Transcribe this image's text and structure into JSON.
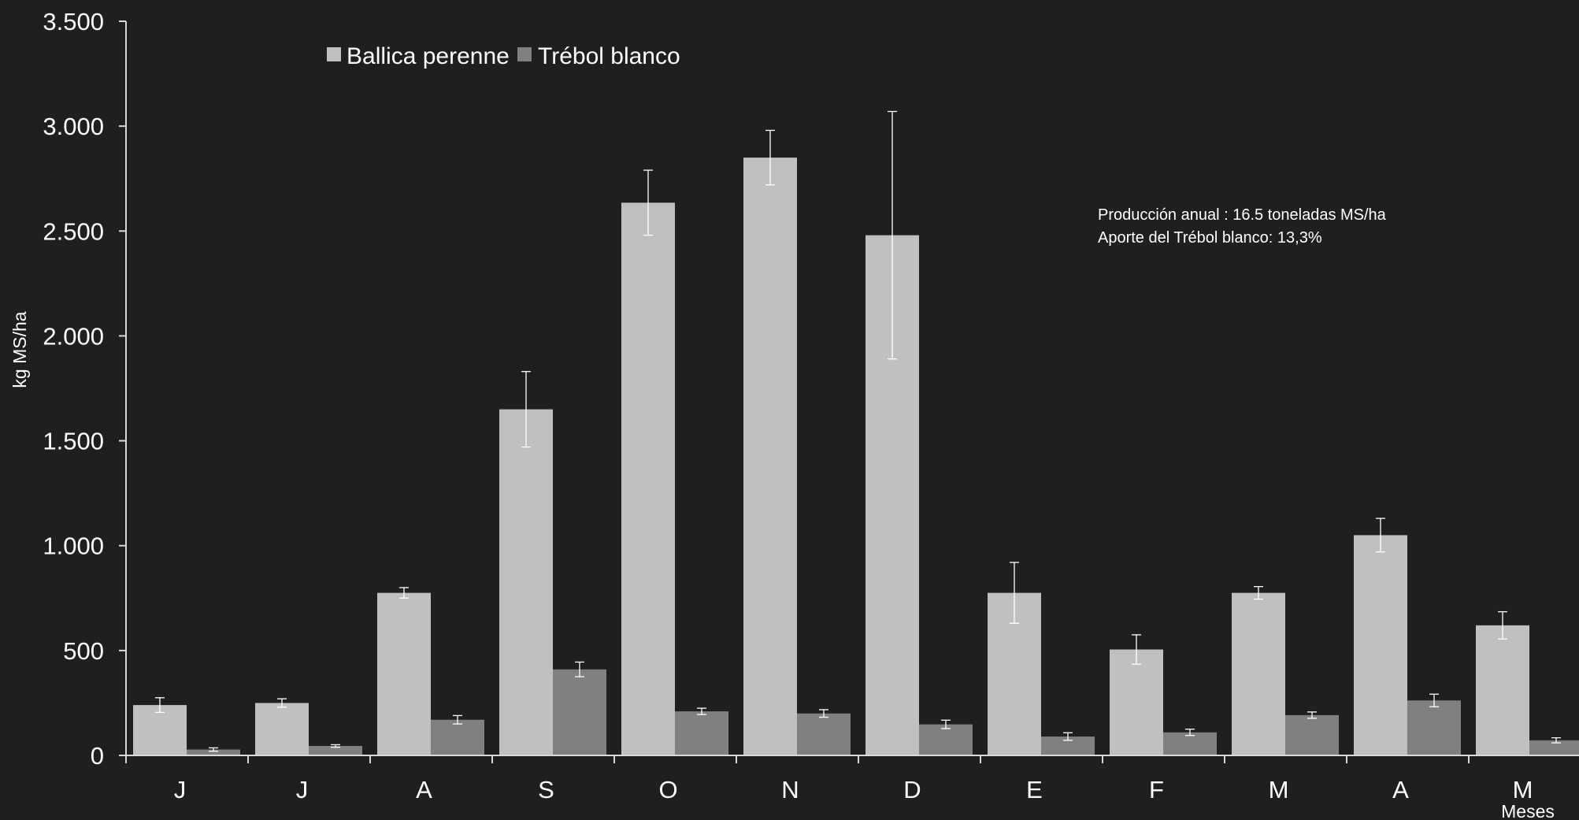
{
  "chart_data": {
    "type": "bar",
    "categories": [
      "J",
      "J",
      "A",
      "S",
      "O",
      "N",
      "D",
      "E",
      "F",
      "M",
      "A",
      "M"
    ],
    "series": [
      {
        "name": "Ballica perenne",
        "color": "#c0c0c0",
        "values": [
          240,
          250,
          775,
          1650,
          2635,
          2850,
          2480,
          775,
          505,
          775,
          1050,
          620
        ],
        "error": [
          35,
          20,
          25,
          180,
          155,
          130,
          590,
          145,
          70,
          30,
          80,
          65
        ]
      },
      {
        "name": "Trébol blanco",
        "color": "#808080",
        "values": [
          28,
          45,
          170,
          410,
          210,
          200,
          148,
          90,
          110,
          192,
          262,
          72
        ],
        "error": [
          8,
          6,
          20,
          35,
          15,
          18,
          20,
          18,
          15,
          15,
          30,
          12
        ]
      }
    ],
    "xlabel": "Meses",
    "ylabel": "kg MS/ha",
    "ylim": [
      0,
      3500
    ],
    "yticks": [
      0,
      500,
      1000,
      1500,
      2000,
      2500,
      3000,
      3500
    ],
    "ytick_labels": [
      "0",
      "500",
      "1.000",
      "1.500",
      "2.000",
      "2.500",
      "3.000",
      "3.500"
    ],
    "grid": false,
    "legend_placement": "top-left",
    "annotations": [
      "Producción anual : 16.5 toneladas MS/ha",
      "Aporte del Trébol blanco: 13,3%"
    ],
    "axis_color": "#d9d9d9",
    "errorbar_color": "#ffffff"
  }
}
